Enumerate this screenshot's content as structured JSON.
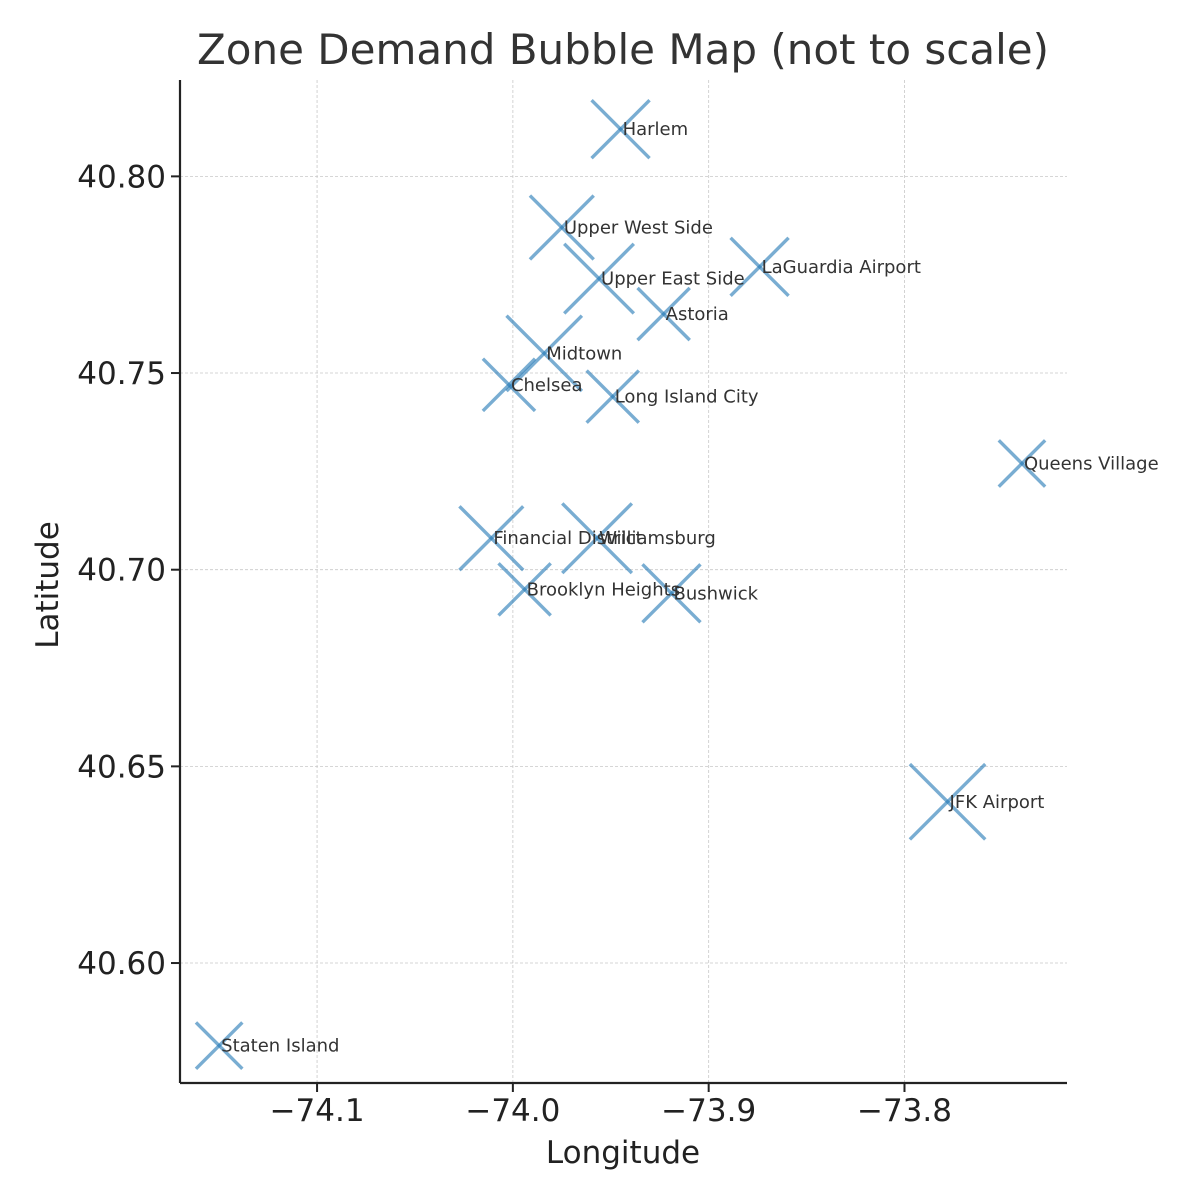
{
  "chart_data": {
    "type": "scatter",
    "title": "Zone Demand Bubble Map (not to scale)",
    "xlabel": "Longitude",
    "ylabel": "Latitude",
    "xlim": [
      -74.17,
      -73.717
    ],
    "ylim": [
      40.5695,
      40.8245
    ],
    "xticks": [
      -74.1,
      -74.0,
      -73.9,
      -73.8
    ],
    "xtick_labels": [
      "−74.1",
      "−74.0",
      "−73.9",
      "−73.8"
    ],
    "yticks": [
      40.6,
      40.65,
      40.7,
      40.75,
      40.8
    ],
    "ytick_labels": [
      "40.60",
      "40.65",
      "40.70",
      "40.75",
      "40.80"
    ],
    "grid": true,
    "marker": "x",
    "marker_color": "#1f77b4",
    "points": [
      {
        "label": "Harlem",
        "x": -73.945,
        "y": 40.812,
        "size": 1.0
      },
      {
        "label": "Upper West Side",
        "x": -73.975,
        "y": 40.787,
        "size": 1.1
      },
      {
        "label": "Upper East Side",
        "x": -73.956,
        "y": 40.774,
        "size": 1.2
      },
      {
        "label": "LaGuardia Airport",
        "x": -73.874,
        "y": 40.777,
        "size": 1.0
      },
      {
        "label": "Astoria",
        "x": -73.923,
        "y": 40.765,
        "size": 0.9
      },
      {
        "label": "Midtown",
        "x": -73.984,
        "y": 40.755,
        "size": 1.3
      },
      {
        "label": "Chelsea",
        "x": -74.002,
        "y": 40.747,
        "size": 0.9
      },
      {
        "label": "Long Island City",
        "x": -73.949,
        "y": 40.744,
        "size": 0.9
      },
      {
        "label": "Queens Village",
        "x": -73.74,
        "y": 40.727,
        "size": 0.8
      },
      {
        "label": "Financial District",
        "x": -74.011,
        "y": 40.708,
        "size": 1.1
      },
      {
        "label": "Williamsburg",
        "x": -73.957,
        "y": 40.708,
        "size": 1.2
      },
      {
        "label": "Brooklyn Heights",
        "x": -73.994,
        "y": 40.695,
        "size": 0.9
      },
      {
        "label": "Bushwick",
        "x": -73.919,
        "y": 40.694,
        "size": 1.0
      },
      {
        "label": "JFK Airport",
        "x": -73.778,
        "y": 40.641,
        "size": 1.3
      },
      {
        "label": "Staten Island",
        "x": -74.15,
        "y": 40.579,
        "size": 0.8
      }
    ]
  }
}
